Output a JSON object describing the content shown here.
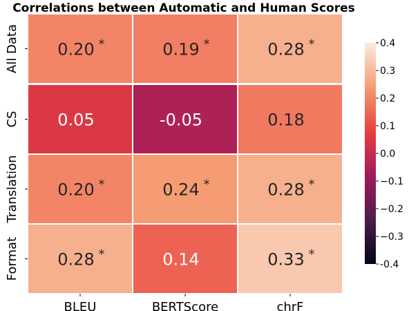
{
  "chart_data": {
    "type": "heatmap",
    "title": "Correlations between Automatic and Human Scores",
    "columns": [
      "BLEU",
      "BERTScore",
      "chrF"
    ],
    "groups": [
      {
        "rows": [
          {
            "label": "All Data",
            "values": [
              0.2,
              0.19,
              0.28
            ],
            "display": [
              "0.20",
              "0.19",
              "0.28"
            ],
            "significant": [
              true,
              true,
              true
            ]
          }
        ]
      },
      {
        "rows": [
          {
            "label": "CS",
            "values": [
              0.05,
              -0.05,
              0.18
            ],
            "display": [
              "0.05",
              "-0.05",
              "0.18"
            ],
            "significant": [
              false,
              false,
              false
            ]
          },
          {
            "label": "Translation",
            "values": [
              0.2,
              0.24,
              0.28
            ],
            "display": [
              "0.20",
              "0.24",
              "0.28"
            ],
            "significant": [
              true,
              true,
              true
            ]
          },
          {
            "label": "Format",
            "values": [
              0.28,
              0.14,
              0.33
            ],
            "display": [
              "0.28",
              "0.14",
              "0.33"
            ],
            "significant": [
              true,
              false,
              true
            ]
          }
        ]
      }
    ],
    "significance_marker": "*",
    "colorbar": {
      "range": [
        -0.4,
        0.4
      ],
      "ticks": [
        "-0.4",
        "−0.3",
        "−0.2",
        "−0.1",
        "0.0",
        "0.1",
        "0.2",
        "0.3",
        "0.4"
      ],
      "tick_values": [
        -0.4,
        -0.3,
        -0.2,
        -0.1,
        0.0,
        0.1,
        0.2,
        0.3,
        0.4
      ],
      "colormap": [
        "#03051a",
        "#4c1d4b",
        "#a11a5b",
        "#e83f3f",
        "#f69c73",
        "#faebdd"
      ]
    }
  }
}
